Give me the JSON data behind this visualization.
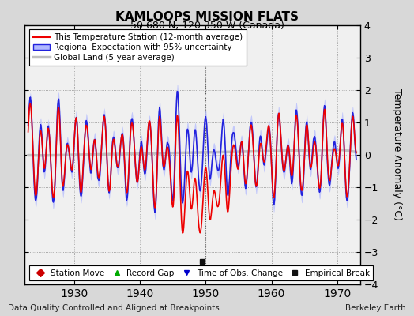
{
  "title": "KAMLOOPS MISSION FLATS",
  "subtitle": "50.680 N, 120.350 W (Canada)",
  "xlabel_left": "Data Quality Controlled and Aligned at Breakpoints",
  "xlabel_right": "Berkeley Earth",
  "ylabel": "Temperature Anomaly (°C)",
  "xlim": [
    1922.5,
    1973.5
  ],
  "ylim": [
    -4,
    4
  ],
  "yticks": [
    -4,
    -3,
    -2,
    -1,
    0,
    1,
    2,
    3,
    4
  ],
  "xticks": [
    1930,
    1940,
    1950,
    1960,
    1970
  ],
  "background_color": "#d8d8d8",
  "plot_bg_color": "#f0f0f0",
  "vertical_line_x": 1950,
  "empirical_break_x": 1949.5,
  "empirical_break_y": -3.3
}
